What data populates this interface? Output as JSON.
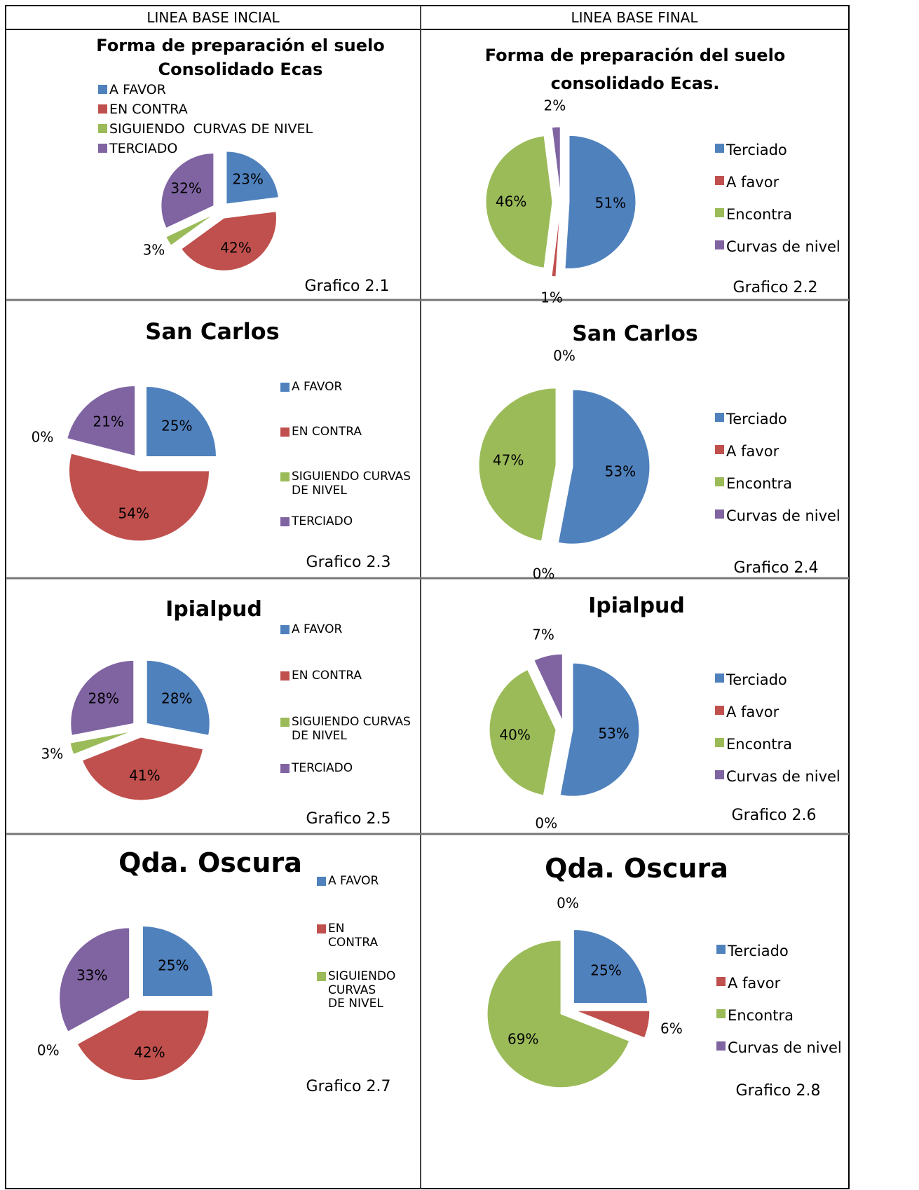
{
  "columns": [
    "LINEA BASE INCIAL",
    "LINEA BASE FINAL"
  ],
  "chart_data": [
    {
      "type": "pie",
      "title": [
        "Forma de preparación el suelo",
        "Consolidado Ecas"
      ],
      "categories": [
        "A FAVOR",
        "EN CONTRA",
        "SIGUIENDO  CURVAS DE NIVEL",
        "TERCIADO"
      ],
      "values": [
        23,
        42,
        3,
        32
      ],
      "value_labels": [
        "23%",
        "42%",
        "3%",
        "32%"
      ],
      "colors": [
        "#4f81bd",
        "#c0504d",
        "#9bbb59",
        "#8064a2"
      ],
      "caption": "Grafico 2.1"
    },
    {
      "type": "pie",
      "title": [
        "Forma de preparación del suelo",
        "consolidado Ecas."
      ],
      "categories": [
        "Terciado",
        "A favor",
        "Encontra",
        "Curvas de nivel"
      ],
      "values": [
        51,
        1,
        46,
        2
      ],
      "value_labels": [
        "51%",
        "1%",
        "46%",
        "2%"
      ],
      "colors": [
        "#4f81bd",
        "#c0504d",
        "#9bbb59",
        "#8064a2"
      ],
      "caption": "Grafico 2.2"
    },
    {
      "type": "pie",
      "title": [
        "San Carlos"
      ],
      "categories": [
        "A FAVOR",
        "EN CONTRA",
        "SIGUIENDO CURVAS DE NIVEL",
        "TERCIADO"
      ],
      "values": [
        25,
        54,
        0,
        21
      ],
      "value_labels": [
        "25%",
        "54%",
        "0%",
        "21%"
      ],
      "colors": [
        "#4f81bd",
        "#c0504d",
        "#9bbb59",
        "#8064a2"
      ],
      "caption": "Grafico 2.3"
    },
    {
      "type": "pie",
      "title": [
        "San Carlos"
      ],
      "categories": [
        "Terciado",
        "A favor",
        "Encontra",
        "Curvas de nivel"
      ],
      "values": [
        53,
        0,
        47,
        0
      ],
      "value_labels": [
        "53%",
        "0%",
        "47%",
        "0%"
      ],
      "colors": [
        "#4f81bd",
        "#c0504d",
        "#9bbb59",
        "#8064a2"
      ],
      "caption": "Grafico 2.4"
    },
    {
      "type": "pie",
      "title": [
        "Ipialpud"
      ],
      "categories": [
        "A FAVOR",
        "EN CONTRA",
        "SIGUIENDO CURVAS DE NIVEL",
        "TERCIADO"
      ],
      "values": [
        28,
        41,
        3,
        28
      ],
      "value_labels": [
        "28%",
        "41%",
        "3%",
        "28%"
      ],
      "colors": [
        "#4f81bd",
        "#c0504d",
        "#9bbb59",
        "#8064a2"
      ],
      "caption": "Grafico 2.5"
    },
    {
      "type": "pie",
      "title": [
        "Ipialpud"
      ],
      "categories": [
        "Terciado",
        "A favor",
        "Encontra",
        "Curvas de nivel"
      ],
      "values": [
        53,
        0,
        40,
        7
      ],
      "value_labels": [
        "53%",
        "0%",
        "40%",
        "7%"
      ],
      "colors": [
        "#4f81bd",
        "#c0504d",
        "#9bbb59",
        "#8064a2"
      ],
      "caption": "Grafico 2.6"
    },
    {
      "type": "pie",
      "title": [
        "Qda. Oscura"
      ],
      "categories": [
        "A FAVOR",
        "EN CONTRA",
        "SIGUIENDO CURVAS DE NIVEL",
        null
      ],
      "values": [
        25,
        42,
        0,
        33
      ],
      "value_labels": [
        "25%",
        "42%",
        "0%",
        "33%"
      ],
      "colors": [
        "#4f81bd",
        "#c0504d",
        "#9bbb59",
        "#8064a2"
      ],
      "caption": "Grafico 2.7"
    },
    {
      "type": "pie",
      "title": [
        "Qda. Oscura"
      ],
      "categories": [
        "Terciado",
        "A favor",
        "Encontra",
        "Curvas de nivel"
      ],
      "values": [
        25,
        6,
        69,
        0
      ],
      "value_labels": [
        "25%",
        "6%",
        "69%",
        "0%"
      ],
      "colors": [
        "#4f81bd",
        "#c0504d",
        "#9bbb59",
        "#8064a2"
      ],
      "caption": "Grafico 2.8"
    }
  ]
}
